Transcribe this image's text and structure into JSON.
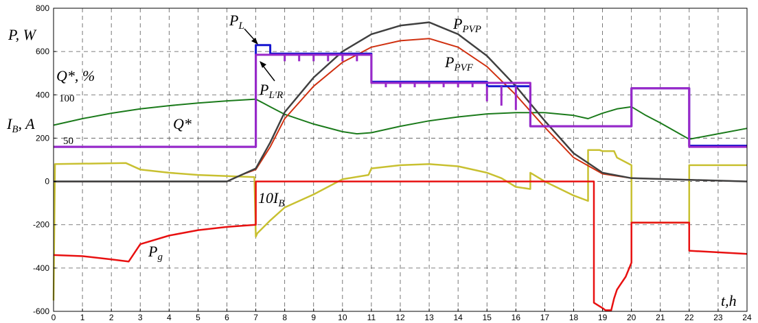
{
  "chart_data": {
    "type": "line",
    "xlim": [
      0,
      24
    ],
    "ylim": [
      -600,
      800
    ],
    "x_ticks": [
      "0",
      "1",
      "2",
      "3",
      "4",
      "5",
      "6",
      "7",
      "8",
      "9",
      "10",
      "11",
      "12",
      "13",
      "14",
      "15",
      "16",
      "17",
      "18",
      "19",
      "20",
      "21",
      "22",
      "23",
      "24"
    ],
    "y_ticks": [
      "800",
      "600",
      "400",
      "200",
      "0",
      "-200",
      "-400",
      "-600"
    ],
    "grid": true,
    "annotations": {
      "p_w": "P, W",
      "q_pct": "Q*, %",
      "ib_a": "I, A",
      "ib_a_sub": "B",
      "level_100": "100",
      "level_50": "50",
      "label_pl": "P",
      "label_pl_sub": "L",
      "label_plr": "P",
      "label_plr_sub": "L'R",
      "label_ppvp": "P",
      "label_ppvp_sub": "PVP",
      "label_ppvf": "P",
      "label_ppvf_sub": "PVF",
      "label_q": "Q*",
      "label_ib10": "10I",
      "label_ib10_sub": "B",
      "label_pg": "P",
      "label_pg_sub": "g",
      "label_th": "t,h"
    },
    "series": [
      {
        "key": "PPVP",
        "color": "#404040",
        "x": [
          0,
          6,
          6.5,
          7,
          7.5,
          8,
          9,
          10,
          11,
          12,
          13,
          14,
          15,
          16,
          17,
          18,
          19,
          20,
          24
        ],
        "y": [
          0,
          0,
          30,
          60,
          180,
          320,
          480,
          600,
          680,
          720,
          735,
          680,
          580,
          440,
          280,
          130,
          40,
          15,
          0
        ]
      },
      {
        "key": "PPVF",
        "color": "#d03010",
        "x": [
          0,
          6,
          6.5,
          7,
          7.5,
          8,
          9,
          10,
          11,
          12,
          13,
          14,
          15,
          16,
          17,
          18,
          19,
          20,
          24
        ],
        "y": [
          0,
          0,
          30,
          55,
          160,
          290,
          440,
          550,
          620,
          650,
          660,
          620,
          530,
          400,
          250,
          110,
          35,
          15,
          0
        ]
      },
      {
        "key": "Q",
        "color": "#1a7a1a",
        "x": [
          0,
          1,
          2,
          3,
          4,
          5,
          6,
          7,
          7.5,
          8,
          9,
          10,
          10.5,
          11,
          12,
          13,
          14,
          15,
          16,
          17,
          18,
          18.5,
          19,
          19.5,
          20,
          20.5,
          21,
          22,
          23,
          24
        ],
        "y": [
          260,
          290,
          315,
          335,
          350,
          362,
          372,
          380,
          345,
          310,
          265,
          230,
          220,
          225,
          255,
          280,
          298,
          312,
          318,
          318,
          305,
          290,
          315,
          335,
          345,
          305,
          270,
          195,
          220,
          245
        ]
      },
      {
        "key": "PL",
        "color": "#1515d0",
        "x": [
          0,
          7,
          7,
          7.5,
          7.5,
          11,
          11,
          15,
          15,
          16.5,
          16.5,
          20,
          20,
          22,
          22,
          24
        ],
        "y": [
          160,
          160,
          630,
          630,
          590,
          590,
          460,
          460,
          440,
          440,
          255,
          255,
          430,
          430,
          165,
          165
        ]
      },
      {
        "key": "PLR",
        "color": "#9a28c8",
        "x": [
          0,
          7,
          7,
          11,
          11,
          16.5,
          16.5,
          20,
          20,
          22,
          22,
          24
        ],
        "y": [
          160,
          160,
          585,
          585,
          455,
          455,
          255,
          255,
          430,
          430,
          160,
          160
        ]
      },
      {
        "key": "IB10",
        "color": "#c8c030",
        "x": [
          0,
          0.05,
          2.5,
          3,
          4,
          5,
          6,
          6.95,
          7,
          7.05,
          7.5,
          8,
          9,
          10,
          10.9,
          11,
          12,
          13,
          14,
          15,
          15.5,
          16,
          16.5,
          16.5,
          17,
          18,
          18.5,
          18.5,
          18.9,
          19,
          19.4,
          19.5,
          20,
          20,
          22,
          22,
          24
        ],
        "y": [
          -550,
          80,
          85,
          55,
          40,
          30,
          25,
          20,
          -255,
          -240,
          -180,
          -120,
          -60,
          10,
          30,
          60,
          75,
          80,
          70,
          40,
          15,
          -25,
          -35,
          40,
          0,
          -65,
          -90,
          145,
          145,
          140,
          140,
          110,
          75,
          -190,
          -190,
          75,
          75
        ]
      },
      {
        "key": "Pg",
        "color": "#e81010",
        "x": [
          0,
          1,
          2,
          2.6,
          3,
          4,
          5,
          6,
          7,
          7,
          18.7,
          18.7,
          19,
          19.1,
          19.3,
          19.4,
          19.5,
          19.6,
          19.8,
          20,
          20,
          22,
          22,
          24
        ],
        "y": [
          -340,
          -345,
          -360,
          -370,
          -290,
          -250,
          -225,
          -210,
          -200,
          0,
          0,
          -560,
          -585,
          -595,
          -595,
          -540,
          -500,
          -480,
          -440,
          -375,
          -190,
          -190,
          -320,
          -335
        ]
      },
      {
        "key": "Pg_zero",
        "color": "#404040",
        "x": [
          0,
          6
        ],
        "y": [
          0,
          0
        ]
      }
    ]
  }
}
